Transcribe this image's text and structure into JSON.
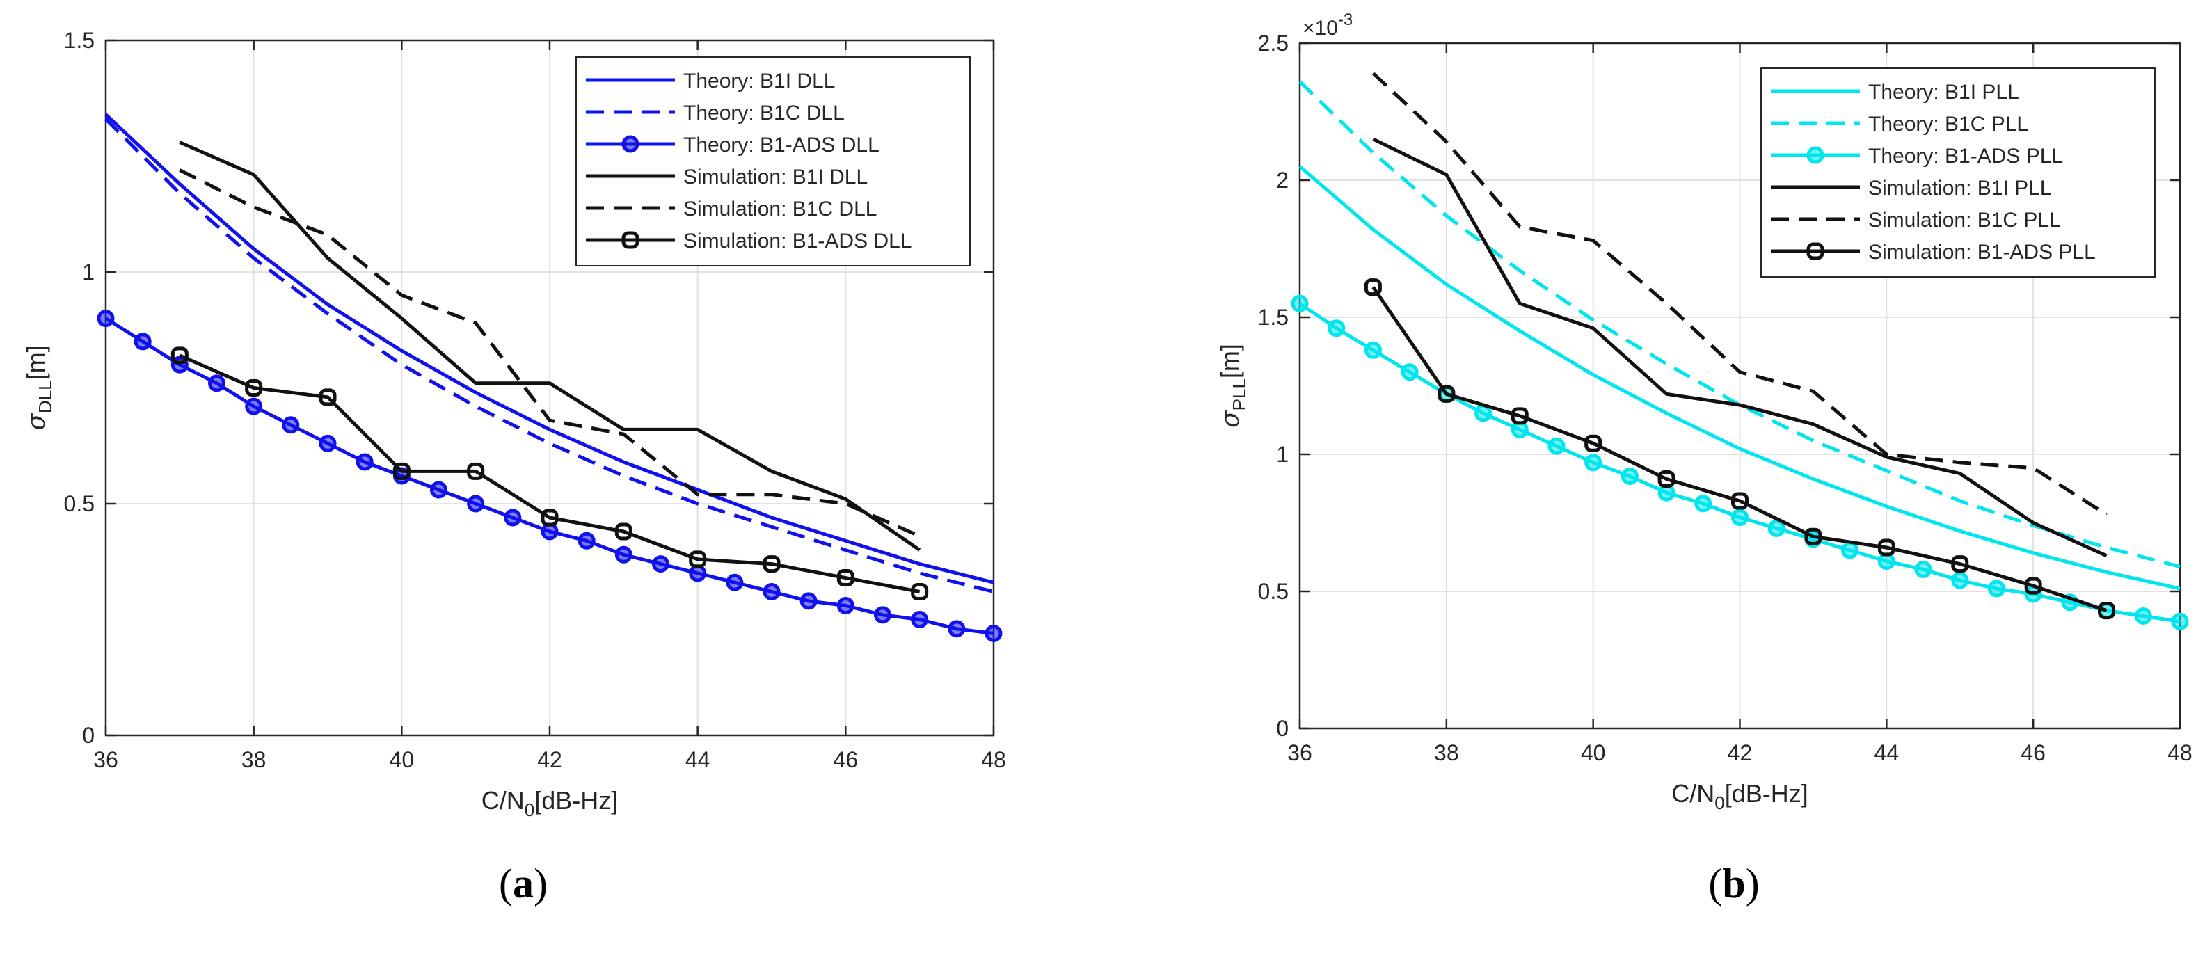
{
  "colors": {
    "blue": "#1111ee",
    "cyan": "#00e5ee",
    "black": "#111111",
    "grid": "#e2e2e2",
    "axis": "#262626"
  },
  "chart_data": [
    {
      "type": "line",
      "caption_letter": "a",
      "xlabel": {
        "main": "C/N",
        "sub": "0",
        "rest": "[dB-Hz]"
      },
      "ylabel": {
        "sigma": "σ",
        "sub": "DLL",
        "rest": "[m]"
      },
      "xlim": [
        36,
        48
      ],
      "ylim": [
        0,
        1.5
      ],
      "xticks": [
        36,
        38,
        40,
        42,
        44,
        46,
        48
      ],
      "xtick_labels": [
        "36",
        "38",
        "40",
        "42",
        "44",
        "46",
        "48"
      ],
      "yticks": [
        0,
        0.5,
        1,
        1.5
      ],
      "ytick_labels": [
        "0",
        "0.5",
        "1",
        "1.5"
      ],
      "grid": true,
      "legend_position": "top-right",
      "series": [
        {
          "name": "Theory: B1I DLL",
          "style": "solid",
          "color": "blue",
          "marker": false,
          "x": [
            36,
            37,
            38,
            39,
            40,
            41,
            42,
            43,
            44,
            45,
            46,
            47,
            48
          ],
          "y": [
            1.34,
            1.19,
            1.05,
            0.93,
            0.83,
            0.74,
            0.66,
            0.59,
            0.53,
            0.47,
            0.42,
            0.37,
            0.33
          ]
        },
        {
          "name": "Theory: B1C DLL",
          "style": "dashed",
          "color": "blue",
          "marker": false,
          "x": [
            36,
            37,
            38,
            39,
            40,
            41,
            42,
            43,
            44,
            45,
            46,
            47,
            48
          ],
          "y": [
            1.33,
            1.17,
            1.03,
            0.91,
            0.8,
            0.71,
            0.63,
            0.56,
            0.5,
            0.45,
            0.4,
            0.35,
            0.31
          ]
        },
        {
          "name": "Theory: B1-ADS DLL",
          "style": "solid",
          "color": "blue",
          "marker": true,
          "x": [
            36,
            36.5,
            37,
            37.5,
            38,
            38.5,
            39,
            39.5,
            40,
            40.5,
            41,
            41.5,
            42,
            42.5,
            43,
            43.5,
            44,
            44.5,
            45,
            45.5,
            46,
            46.5,
            47,
            47.5,
            48
          ],
          "y": [
            0.9,
            0.85,
            0.8,
            0.76,
            0.71,
            0.67,
            0.63,
            0.59,
            0.56,
            0.53,
            0.5,
            0.47,
            0.44,
            0.42,
            0.39,
            0.37,
            0.35,
            0.33,
            0.31,
            0.29,
            0.28,
            0.26,
            0.25,
            0.23,
            0.22
          ]
        },
        {
          "name": "Simulation: B1I DLL",
          "style": "solid",
          "color": "black",
          "marker": false,
          "x": [
            37,
            38,
            39,
            40,
            41,
            42,
            43,
            44,
            45,
            46,
            47
          ],
          "y": [
            1.28,
            1.21,
            1.03,
            0.9,
            0.76,
            0.76,
            0.66,
            0.66,
            0.57,
            0.51,
            0.4
          ]
        },
        {
          "name": "Simulation: B1C DLL",
          "style": "dashed",
          "color": "black",
          "marker": false,
          "x": [
            37,
            38,
            39,
            40,
            41,
            42,
            43,
            44,
            45,
            46,
            47
          ],
          "y": [
            1.22,
            1.14,
            1.08,
            0.95,
            0.89,
            0.68,
            0.65,
            0.52,
            0.52,
            0.5,
            0.43
          ]
        },
        {
          "name": "Simulation: B1-ADS DLL",
          "style": "solid",
          "color": "black",
          "marker": true,
          "x": [
            37,
            38,
            39,
            40,
            41,
            42,
            43,
            44,
            45,
            46,
            47
          ],
          "y": [
            0.82,
            0.75,
            0.73,
            0.57,
            0.57,
            0.47,
            0.44,
            0.38,
            0.37,
            0.34,
            0.31
          ]
        }
      ]
    },
    {
      "type": "line",
      "caption_letter": "b",
      "exponent": {
        "base": "×10",
        "power": "-3"
      },
      "xlabel": {
        "main": "C/N",
        "sub": "0",
        "rest": "[dB-Hz]"
      },
      "ylabel": {
        "sigma": "σ",
        "sub": "PLL",
        "rest": "[m]"
      },
      "xlim": [
        36,
        48
      ],
      "ylim": [
        0,
        2.5
      ],
      "xticks": [
        36,
        38,
        40,
        42,
        44,
        46,
        48
      ],
      "xtick_labels": [
        "36",
        "38",
        "40",
        "42",
        "44",
        "46",
        "48"
      ],
      "yticks": [
        0,
        0.5,
        1,
        1.5,
        2,
        2.5
      ],
      "ytick_labels": [
        "0",
        "0.5",
        "1",
        "1.5",
        "2",
        "2.5"
      ],
      "grid": true,
      "legend_position": "top-right",
      "series": [
        {
          "name": "Theory: B1I PLL",
          "style": "solid",
          "color": "cyan",
          "marker": false,
          "x": [
            36,
            37,
            38,
            39,
            40,
            41,
            42,
            43,
            44,
            45,
            46,
            47,
            48
          ],
          "y": [
            2.05,
            1.82,
            1.62,
            1.45,
            1.29,
            1.15,
            1.02,
            0.91,
            0.81,
            0.72,
            0.64,
            0.57,
            0.51
          ]
        },
        {
          "name": "Theory: B1C PLL",
          "style": "dashed",
          "color": "cyan",
          "marker": false,
          "x": [
            36,
            37,
            38,
            39,
            40,
            41,
            42,
            43,
            44,
            45,
            46,
            47,
            48
          ],
          "y": [
            2.36,
            2.1,
            1.87,
            1.67,
            1.49,
            1.33,
            1.18,
            1.05,
            0.94,
            0.83,
            0.74,
            0.66,
            0.59
          ]
        },
        {
          "name": "Theory: B1-ADS PLL",
          "style": "solid",
          "color": "cyan",
          "marker": true,
          "x": [
            36,
            36.5,
            37,
            37.5,
            38,
            38.5,
            39,
            39.5,
            40,
            40.5,
            41,
            41.5,
            42,
            42.5,
            43,
            43.5,
            44,
            44.5,
            45,
            45.5,
            46,
            46.5,
            47,
            47.5,
            48
          ],
          "y": [
            1.55,
            1.46,
            1.38,
            1.3,
            1.22,
            1.15,
            1.09,
            1.03,
            0.97,
            0.92,
            0.86,
            0.82,
            0.77,
            0.73,
            0.69,
            0.65,
            0.61,
            0.58,
            0.54,
            0.51,
            0.49,
            0.46,
            0.43,
            0.41,
            0.39
          ]
        },
        {
          "name": "Simulation: B1I PLL",
          "style": "solid",
          "color": "black",
          "marker": false,
          "x": [
            37,
            38,
            39,
            40,
            41,
            42,
            43,
            44,
            45,
            46,
            47
          ],
          "y": [
            2.15,
            2.02,
            1.55,
            1.46,
            1.22,
            1.18,
            1.11,
            0.99,
            0.93,
            0.75,
            0.63
          ]
        },
        {
          "name": "Simulation: B1C PLL",
          "style": "dashed",
          "color": "black",
          "marker": false,
          "x": [
            37,
            38,
            39,
            40,
            41,
            42,
            43,
            44,
            45,
            46,
            47
          ],
          "y": [
            2.39,
            2.14,
            1.83,
            1.78,
            1.55,
            1.3,
            1.23,
            1.0,
            0.97,
            0.95,
            0.78
          ]
        },
        {
          "name": "Simulation: B1-ADS PLL",
          "style": "solid",
          "color": "black",
          "marker": true,
          "x": [
            37,
            38,
            39,
            40,
            41,
            42,
            43,
            44,
            45,
            46,
            47
          ],
          "y": [
            1.61,
            1.22,
            1.14,
            1.04,
            0.91,
            0.83,
            0.7,
            0.66,
            0.6,
            0.52,
            0.43
          ]
        }
      ]
    }
  ]
}
